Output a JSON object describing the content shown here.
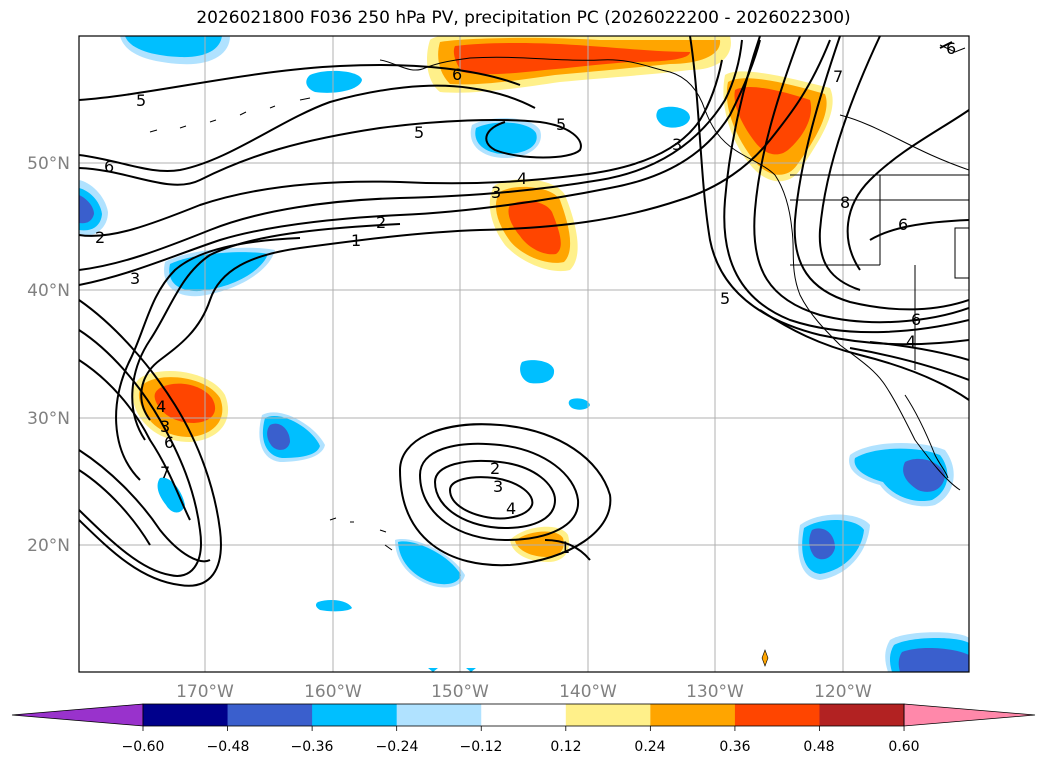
{
  "title": "2026021800 F036 250 hPa PV, precipitation PC (2026022200 - 2026022300)",
  "lat_labels": [
    "50°N",
    "40°N",
    "30°N",
    "20°N"
  ],
  "lon_labels": [
    "170°W",
    "160°W",
    "150°W",
    "140°W",
    "130°W",
    "120°W"
  ],
  "colorbar": {
    "ticks": [
      "−0.60",
      "−0.48",
      "−0.36",
      "−0.24",
      "−0.12",
      "0.12",
      "0.24",
      "0.36",
      "0.48",
      "0.60"
    ],
    "colors": [
      "#9932cc",
      "#00008b",
      "#3a5fcd",
      "#00bfff",
      "#b0e2ff",
      "#ffffff",
      "#fff08a",
      "#ffa500",
      "#ff4500",
      "#b22222",
      "#ff88aa"
    ]
  },
  "contour_labels": [
    "5",
    "6",
    "5",
    "5",
    "6",
    "4",
    "3",
    "2",
    "1",
    "2",
    "3",
    "6",
    "3",
    "4",
    "3",
    "6",
    "7",
    "2",
    "3",
    "4",
    "1",
    "5",
    "7",
    "8",
    "6",
    "6",
    "4",
    "3"
  ],
  "shading": {
    "pos_color_1": "#fff08a",
    "pos_color_2": "#ffa500",
    "pos_color_3": "#ff4500",
    "neg_color_1": "#b0e2ff",
    "neg_color_2": "#00bfff",
    "neg_color_3": "#3a5fcd"
  }
}
